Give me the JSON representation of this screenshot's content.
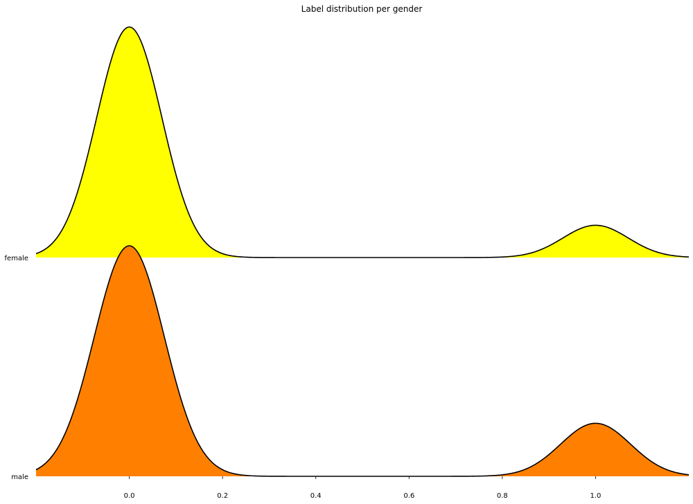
{
  "chart_data": {
    "type": "area",
    "title": "Label distribution per gender",
    "xlabel": "",
    "ylabel": "",
    "xlim": [
      -0.2,
      1.2
    ],
    "x_ticks": [
      "0.0",
      "0.2",
      "0.4",
      "0.6",
      "0.8",
      "1.0"
    ],
    "x_tick_values": [
      0.0,
      0.2,
      0.4,
      0.6,
      0.8,
      1.0
    ],
    "grid": false,
    "series": [
      {
        "name": "female",
        "color": "#ffff00",
        "components": [
          {
            "mean": 0.0,
            "std": 0.07,
            "weight": 1.0
          },
          {
            "mean": 1.0,
            "std": 0.07,
            "weight": 0.14
          }
        ]
      },
      {
        "name": "male",
        "color": "#ff8000",
        "components": [
          {
            "mean": 0.0,
            "std": 0.075,
            "weight": 1.0
          },
          {
            "mean": 1.0,
            "std": 0.075,
            "weight": 0.23
          }
        ]
      }
    ]
  }
}
